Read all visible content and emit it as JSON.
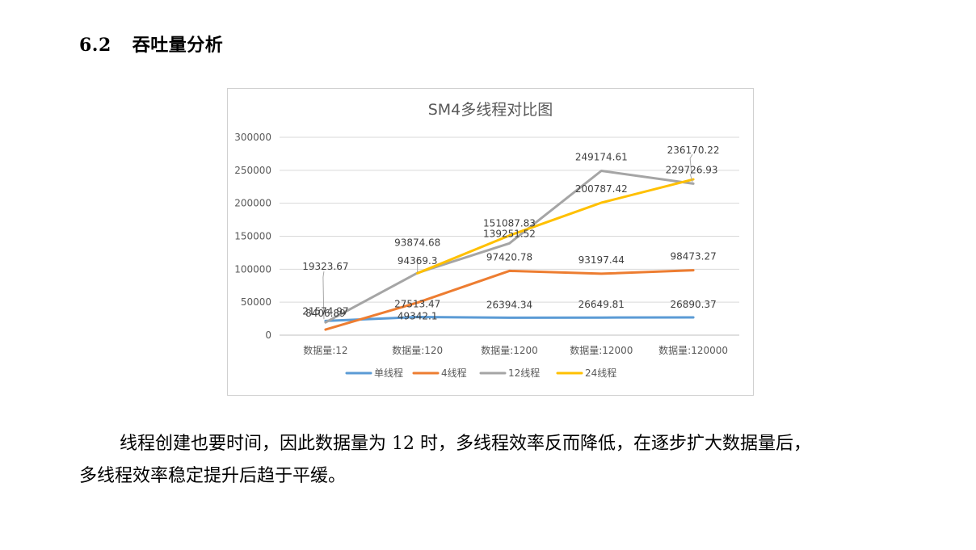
{
  "section": {
    "number": "6.2",
    "title": "吞吐量分析"
  },
  "paragraph": {
    "line1": "线程创建也要时间，因此数据量为 12 时，多线程效率反而降低，在逐步扩大数据量后，",
    "line2": "多线程效率稳定提升后趋于平缓。"
  },
  "chart_data": {
    "type": "line",
    "title": "SM4多线程对比图",
    "xlabel": "",
    "ylabel": "",
    "ylim": [
      0,
      300000
    ],
    "yticks": [
      0,
      50000,
      100000,
      150000,
      200000,
      250000,
      300000
    ],
    "grid": true,
    "legend": "bottom",
    "categories": [
      "数据量:12",
      "数据量:120",
      "数据量:1200",
      "数据量:12000",
      "数据量:120000"
    ],
    "series": [
      {
        "name": "单线程",
        "color": "#5b9bd5",
        "values": [
          21574.97,
          27513.47,
          26394.34,
          26649.81,
          26890.37
        ],
        "labels": [
          "21574.97",
          "27513.47",
          "26394.34",
          "26649.81",
          "26890.37"
        ]
      },
      {
        "name": "4线程",
        "color": "#ed7d31",
        "values": [
          8406.89,
          49342.1,
          97420.78,
          93197.44,
          98473.27
        ],
        "labels": [
          "8406.89",
          "49342.1",
          "97420.78",
          "93197.44",
          "98473.27"
        ]
      },
      {
        "name": "12线程",
        "color": "#a5a5a5",
        "values": [
          19323.67,
          94369.3,
          139251.52,
          249174.61,
          229726.93
        ],
        "labels": [
          "19323.67",
          "94369.3",
          "139251.52",
          "249174.61",
          "229726.93"
        ]
      },
      {
        "name": "24线程",
        "color": "#ffc000",
        "values": [
          null,
          93874.68,
          151087.83,
          200787.42,
          236170.22
        ],
        "labels": [
          "",
          "93874.68",
          "151087.83",
          "200787.42",
          "236170.22"
        ]
      }
    ]
  }
}
